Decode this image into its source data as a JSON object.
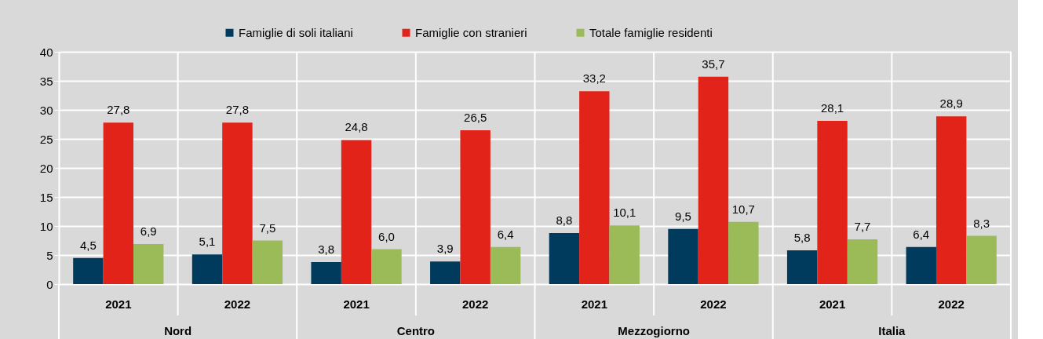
{
  "chart_data": {
    "type": "bar",
    "categories": [
      "2021",
      "2022",
      "2021",
      "2022",
      "2021",
      "2022",
      "2021",
      "2022"
    ],
    "series": [
      {
        "name": "Famiglie di soli italiani",
        "color": "#003a5c",
        "values": [
          4.5,
          5.1,
          3.8,
          3.9,
          8.8,
          9.5,
          5.8,
          6.4
        ],
        "value_labels": [
          "4,5",
          "5,1",
          "3,8",
          "3,9",
          "8,8",
          "9,5",
          "5,8",
          "6,4"
        ]
      },
      {
        "name": "Famiglie con stranieri",
        "color": "#e2231a",
        "values": [
          27.8,
          27.8,
          24.8,
          26.5,
          33.2,
          35.7,
          28.1,
          28.9
        ],
        "value_labels": [
          "27,8",
          "27,8",
          "24,8",
          "26,5",
          "33,2",
          "35,7",
          "28,1",
          "28,9"
        ]
      },
      {
        "name": "Totale famiglie residenti",
        "color": "#9bbb59",
        "values": [
          6.9,
          7.5,
          6.0,
          6.4,
          10.1,
          10.7,
          7.7,
          8.3
        ],
        "value_labels": [
          "6,9",
          "7,5",
          "6,0",
          "6,4",
          "10,1",
          "10,7",
          "7,7",
          "8,3"
        ]
      }
    ],
    "annotations": [
      "Nord",
      "Centro",
      "Mezzogiorno",
      "Italia"
    ],
    "ylim": [
      0,
      40
    ],
    "yticks": [
      0,
      5,
      10,
      15,
      20,
      25,
      30,
      35,
      40
    ],
    "grid": "y",
    "legend": "top"
  }
}
